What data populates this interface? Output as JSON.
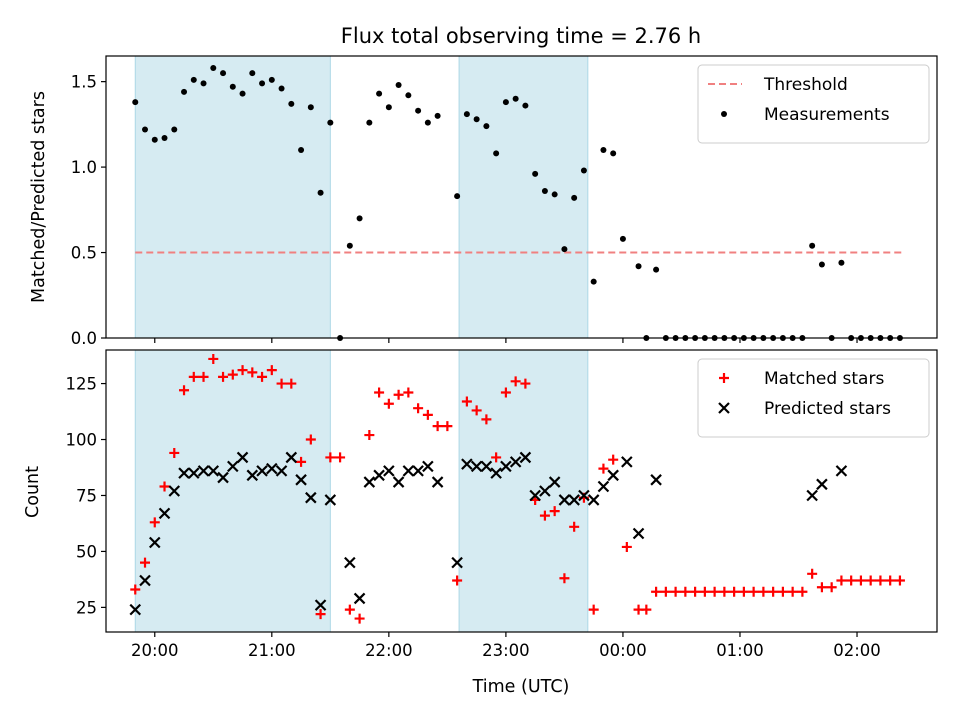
{
  "figure": {
    "title": "Flux total observing time = 2.76 h"
  },
  "chart_data": [
    {
      "type": "scatter",
      "ylabel": "Matched/Predicted stars",
      "xlabel": "",
      "xlim": [
        "19:35",
        "02:41"
      ],
      "ylim": [
        0,
        1.65
      ],
      "yticks": [
        0.0,
        0.5,
        1.0,
        1.5
      ],
      "ytick_labels": [
        "0.0",
        "0.5",
        "1.0",
        "1.5"
      ],
      "shaded_intervals": [
        [
          "19:50",
          "21:30"
        ],
        [
          "22:36",
          "23:42"
        ]
      ],
      "legend": {
        "position": "top-right",
        "entries": [
          "Threshold",
          "Measurements"
        ]
      },
      "threshold": {
        "name": "Threshold",
        "value": 0.5,
        "x_range": [
          "19:50",
          "02:24"
        ],
        "color": "#f08080"
      },
      "series": [
        {
          "name": "Measurements",
          "marker": "dot",
          "color": "#000000",
          "points": [
            [
              "19:50",
              1.38
            ],
            [
              "19:55",
              1.22
            ],
            [
              "20:00",
              1.16
            ],
            [
              "20:05",
              1.17
            ],
            [
              "20:10",
              1.22
            ],
            [
              "20:15",
              1.44
            ],
            [
              "20:20",
              1.51
            ],
            [
              "20:25",
              1.49
            ],
            [
              "20:30",
              1.58
            ],
            [
              "20:35",
              1.55
            ],
            [
              "20:40",
              1.47
            ],
            [
              "20:45",
              1.43
            ],
            [
              "20:50",
              1.55
            ],
            [
              "20:55",
              1.49
            ],
            [
              "21:00",
              1.51
            ],
            [
              "21:05",
              1.46
            ],
            [
              "21:10",
              1.37
            ],
            [
              "21:15",
              1.1
            ],
            [
              "21:20",
              1.35
            ],
            [
              "21:25",
              0.85
            ],
            [
              "21:30",
              1.26
            ],
            [
              "21:35",
              0.0
            ],
            [
              "21:40",
              0.54
            ],
            [
              "21:45",
              0.7
            ],
            [
              "21:50",
              1.26
            ],
            [
              "21:55",
              1.43
            ],
            [
              "22:00",
              1.35
            ],
            [
              "22:05",
              1.48
            ],
            [
              "22:10",
              1.42
            ],
            [
              "22:15",
              1.33
            ],
            [
              "22:20",
              1.26
            ],
            [
              "22:25",
              1.3
            ],
            [
              "22:35",
              0.83
            ],
            [
              "22:40",
              1.31
            ],
            [
              "22:45",
              1.28
            ],
            [
              "22:50",
              1.24
            ],
            [
              "22:55",
              1.08
            ],
            [
              "23:00",
              1.38
            ],
            [
              "23:05",
              1.4
            ],
            [
              "23:10",
              1.36
            ],
            [
              "23:15",
              0.96
            ],
            [
              "23:20",
              0.86
            ],
            [
              "23:25",
              0.84
            ],
            [
              "23:30",
              0.52
            ],
            [
              "23:35",
              0.82
            ],
            [
              "23:40",
              0.98
            ],
            [
              "23:45",
              0.33
            ],
            [
              "23:50",
              1.1
            ],
            [
              "23:55",
              1.08
            ],
            [
              "00:00",
              0.58
            ],
            [
              "00:08",
              0.42
            ],
            [
              "00:12",
              0.0
            ],
            [
              "00:17",
              0.4
            ],
            [
              "00:22",
              0.0
            ],
            [
              "00:27",
              0.0
            ],
            [
              "00:32",
              0.0
            ],
            [
              "00:37",
              0.0
            ],
            [
              "00:42",
              0.0
            ],
            [
              "00:47",
              0.0
            ],
            [
              "00:52",
              0.0
            ],
            [
              "00:57",
              0.0
            ],
            [
              "01:02",
              0.0
            ],
            [
              "01:07",
              0.0
            ],
            [
              "01:12",
              0.0
            ],
            [
              "01:17",
              0.0
            ],
            [
              "01:22",
              0.0
            ],
            [
              "01:27",
              0.0
            ],
            [
              "01:32",
              0.0
            ],
            [
              "01:37",
              0.54
            ],
            [
              "01:42",
              0.43
            ],
            [
              "01:47",
              0.0
            ],
            [
              "01:52",
              0.44
            ],
            [
              "01:57",
              0.0
            ],
            [
              "02:02",
              0.0
            ],
            [
              "02:07",
              0.0
            ],
            [
              "02:12",
              0.0
            ],
            [
              "02:17",
              0.0
            ],
            [
              "02:22",
              0.0
            ]
          ]
        }
      ]
    },
    {
      "type": "scatter",
      "ylabel": "Count",
      "xlabel": "Time (UTC)",
      "xlim": [
        "19:35",
        "02:41"
      ],
      "ylim": [
        14,
        140
      ],
      "yticks": [
        25,
        50,
        75,
        100,
        125
      ],
      "ytick_labels": [
        "25",
        "50",
        "75",
        "100",
        "125"
      ],
      "xticks": [
        "20:00",
        "21:00",
        "22:00",
        "23:00",
        "00:00",
        "01:00",
        "02:00"
      ],
      "shaded_intervals": [
        [
          "19:50",
          "21:30"
        ],
        [
          "22:36",
          "23:42"
        ]
      ],
      "legend": {
        "position": "top-right",
        "entries": [
          "Matched stars",
          "Predicted stars"
        ]
      },
      "series": [
        {
          "name": "Matched stars",
          "marker": "plus",
          "color": "#ff0000",
          "points": [
            [
              "19:50",
              33
            ],
            [
              "19:55",
              45
            ],
            [
              "20:00",
              63
            ],
            [
              "20:05",
              79
            ],
            [
              "20:10",
              94
            ],
            [
              "20:15",
              122
            ],
            [
              "20:20",
              128
            ],
            [
              "20:25",
              128
            ],
            [
              "20:30",
              136
            ],
            [
              "20:35",
              128
            ],
            [
              "20:40",
              129
            ],
            [
              "20:45",
              131
            ],
            [
              "20:50",
              130
            ],
            [
              "20:55",
              128
            ],
            [
              "21:00",
              131
            ],
            [
              "21:05",
              125
            ],
            [
              "21:10",
              125
            ],
            [
              "21:15",
              90
            ],
            [
              "21:20",
              100
            ],
            [
              "21:25",
              22
            ],
            [
              "21:30",
              92
            ],
            [
              "21:35",
              92
            ],
            [
              "21:40",
              24
            ],
            [
              "21:45",
              20
            ],
            [
              "21:50",
              102
            ],
            [
              "21:55",
              121
            ],
            [
              "22:00",
              116
            ],
            [
              "22:05",
              120
            ],
            [
              "22:10",
              121
            ],
            [
              "22:15",
              114
            ],
            [
              "22:20",
              111
            ],
            [
              "22:25",
              106
            ],
            [
              "22:30",
              106
            ],
            [
              "22:35",
              37
            ],
            [
              "22:40",
              117
            ],
            [
              "22:45",
              113
            ],
            [
              "22:50",
              109
            ],
            [
              "22:55",
              92
            ],
            [
              "23:00",
              121
            ],
            [
              "23:05",
              126
            ],
            [
              "23:10",
              125
            ],
            [
              "23:15",
              73
            ],
            [
              "23:20",
              66
            ],
            [
              "23:25",
              68
            ],
            [
              "23:30",
              38
            ],
            [
              "23:35",
              61
            ],
            [
              "23:40",
              74
            ],
            [
              "23:45",
              24
            ],
            [
              "23:50",
              87
            ],
            [
              "23:55",
              91
            ],
            [
              "00:02",
              52
            ],
            [
              "00:08",
              24
            ],
            [
              "00:12",
              24
            ],
            [
              "00:17",
              32
            ],
            [
              "00:22",
              32
            ],
            [
              "00:27",
              32
            ],
            [
              "00:32",
              32
            ],
            [
              "00:37",
              32
            ],
            [
              "00:42",
              32
            ],
            [
              "00:47",
              32
            ],
            [
              "00:52",
              32
            ],
            [
              "00:57",
              32
            ],
            [
              "01:02",
              32
            ],
            [
              "01:07",
              32
            ],
            [
              "01:12",
              32
            ],
            [
              "01:17",
              32
            ],
            [
              "01:22",
              32
            ],
            [
              "01:27",
              32
            ],
            [
              "01:32",
              32
            ],
            [
              "01:37",
              40
            ],
            [
              "01:42",
              34
            ],
            [
              "01:47",
              34
            ],
            [
              "01:52",
              37
            ],
            [
              "01:57",
              37
            ],
            [
              "02:02",
              37
            ],
            [
              "02:07",
              37
            ],
            [
              "02:12",
              37
            ],
            [
              "02:17",
              37
            ],
            [
              "02:22",
              37
            ]
          ]
        },
        {
          "name": "Predicted stars",
          "marker": "x",
          "color": "#000000",
          "points": [
            [
              "19:50",
              24
            ],
            [
              "19:55",
              37
            ],
            [
              "20:00",
              54
            ],
            [
              "20:05",
              67
            ],
            [
              "20:10",
              77
            ],
            [
              "20:15",
              85
            ],
            [
              "20:20",
              85
            ],
            [
              "20:25",
              86
            ],
            [
              "20:30",
              86
            ],
            [
              "20:35",
              83
            ],
            [
              "20:40",
              88
            ],
            [
              "20:45",
              92
            ],
            [
              "20:50",
              84
            ],
            [
              "20:55",
              86
            ],
            [
              "21:00",
              87
            ],
            [
              "21:05",
              86
            ],
            [
              "21:10",
              92
            ],
            [
              "21:15",
              82
            ],
            [
              "21:20",
              74
            ],
            [
              "21:25",
              26
            ],
            [
              "21:30",
              73
            ],
            [
              "21:40",
              45
            ],
            [
              "21:45",
              29
            ],
            [
              "21:50",
              81
            ],
            [
              "21:55",
              84
            ],
            [
              "22:00",
              86
            ],
            [
              "22:05",
              81
            ],
            [
              "22:10",
              86
            ],
            [
              "22:15",
              86
            ],
            [
              "22:20",
              88
            ],
            [
              "22:25",
              81
            ],
            [
              "22:35",
              45
            ],
            [
              "22:40",
              89
            ],
            [
              "22:45",
              88
            ],
            [
              "22:50",
              88
            ],
            [
              "22:55",
              85
            ],
            [
              "23:00",
              88
            ],
            [
              "23:05",
              90
            ],
            [
              "23:10",
              92
            ],
            [
              "23:15",
              75
            ],
            [
              "23:20",
              77
            ],
            [
              "23:25",
              81
            ],
            [
              "23:30",
              73
            ],
            [
              "23:35",
              73
            ],
            [
              "23:40",
              75
            ],
            [
              "23:45",
              73
            ],
            [
              "23:50",
              79
            ],
            [
              "23:55",
              84
            ],
            [
              "00:02",
              90
            ],
            [
              "00:08",
              58
            ],
            [
              "00:17",
              82
            ],
            [
              "01:37",
              75
            ],
            [
              "01:42",
              80
            ],
            [
              "01:52",
              86
            ]
          ]
        }
      ]
    }
  ]
}
